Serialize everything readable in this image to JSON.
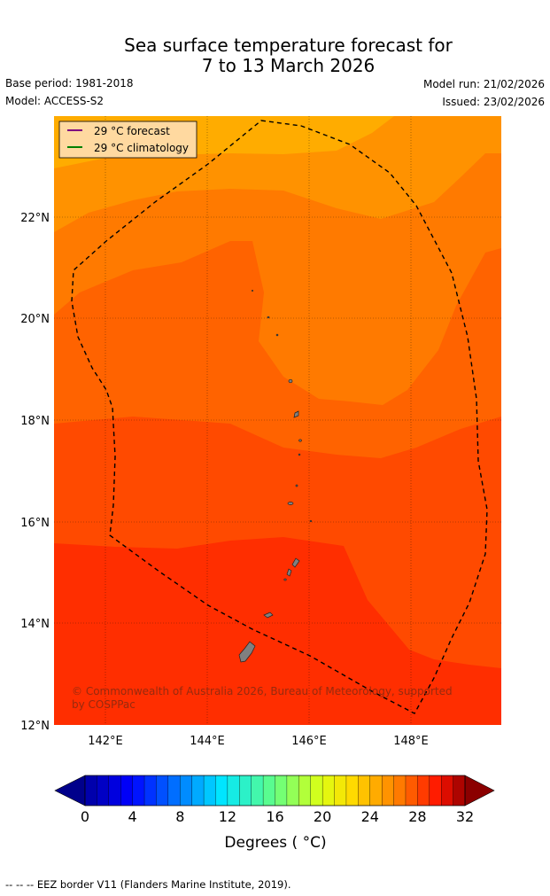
{
  "title": {
    "line1": "Sea surface temperature forecast for",
    "line2": "7 to 13 March 2026"
  },
  "meta": {
    "base_period": "Base period: 1981-2018",
    "model": "Model: ACCESS-S2",
    "model_run": "Model run: 21/02/2026",
    "issued": "Issued: 23/02/2026"
  },
  "map": {
    "lon_range": [
      141,
      149.8
    ],
    "lat_range": [
      12,
      24
    ],
    "x_ticks": [
      "142°E",
      "144°E",
      "146°E",
      "148°E"
    ],
    "y_ticks": [
      "12°N",
      "14°N",
      "16°N",
      "18°N",
      "20°N",
      "22°N"
    ],
    "legend": [
      {
        "label": "29 °C  forecast",
        "color": "#800080"
      },
      {
        "label": "29 °C  climatology",
        "color": "#008000"
      }
    ],
    "copyright": "© Commonwealth of Australia 2026, Bureau of Meteorology, supported by COSPPac",
    "band_colors": [
      "#ffac00",
      "#ff9200",
      "#ff7a00",
      "#ff6300",
      "#ff4a00",
      "#ff2e00",
      "#ff1a00"
    ]
  },
  "colorbar": {
    "label": "Degrees ( °C)",
    "min": 0,
    "max": 32,
    "tick_values": [
      "0",
      "4",
      "8",
      "12",
      "16",
      "20",
      "24",
      "28",
      "32"
    ],
    "under_color": "#00008b",
    "over_color": "#8b0000"
  },
  "footer": "--  --  -- EEZ border V11 (Flanders Marine Institute, 2019)."
}
